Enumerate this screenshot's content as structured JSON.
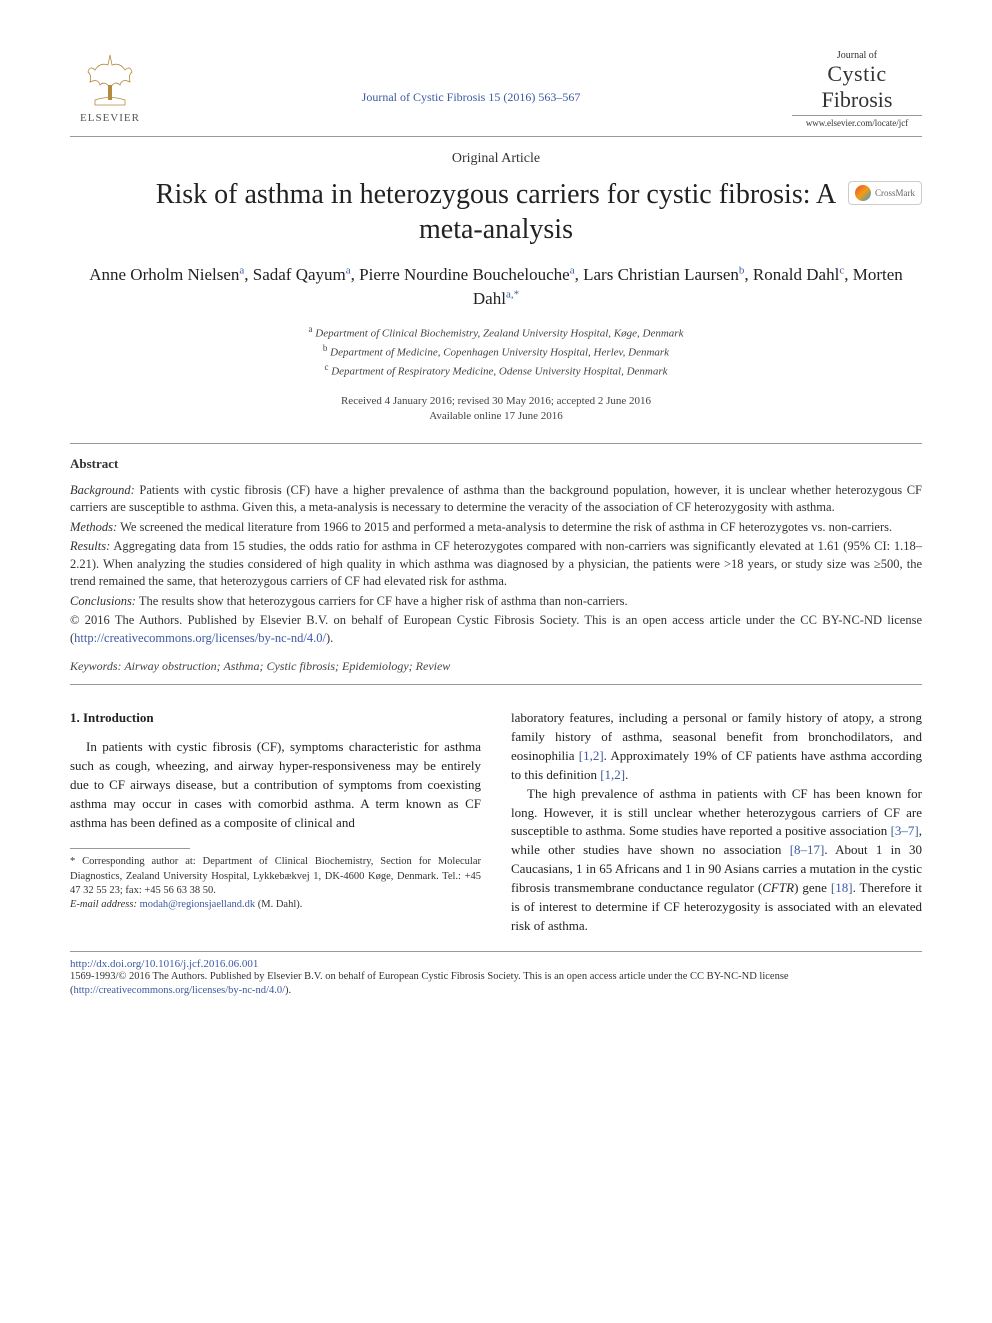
{
  "header": {
    "publisher_name": "ELSEVIER",
    "journal_reference": "Journal of Cystic Fibrosis 15 (2016) 563–567",
    "journal_logo_top": "Journal of",
    "journal_logo_line1": "Cystic",
    "journal_logo_line2": "Fibrosis",
    "journal_url": "www.elsevier.com/locate/jcf"
  },
  "article": {
    "type": "Original Article",
    "title": "Risk of asthma in heterozygous carriers for cystic fibrosis: A meta-analysis",
    "crossmark_label": "CrossMark"
  },
  "authors_line": "Anne Orholm Nielsen<sup>a</sup>, Sadaf Qayum<sup>a</sup>, Pierre Nourdine Bouchelouche<sup>a</sup>, Lars Christian Laursen<sup>b</sup>, Ronald Dahl<sup>c</sup>, Morten Dahl<sup>a,*</sup>",
  "affiliations": [
    {
      "sup": "a",
      "text": "Department of Clinical Biochemistry, Zealand University Hospital, Køge, Denmark"
    },
    {
      "sup": "b",
      "text": "Department of Medicine, Copenhagen University Hospital, Herlev, Denmark"
    },
    {
      "sup": "c",
      "text": "Department of Respiratory Medicine, Odense University Hospital, Denmark"
    }
  ],
  "dates": {
    "line1": "Received 4 January 2016; revised 30 May 2016; accepted 2 June 2016",
    "line2": "Available online 17 June 2016"
  },
  "abstract": {
    "heading": "Abstract",
    "background_label": "Background:",
    "background_text": " Patients with cystic fibrosis (CF) have a higher prevalence of asthma than the background population, however, it is unclear whether heterozygous CF carriers are susceptible to asthma. Given this, a meta-analysis is necessary to determine the veracity of the association of CF heterozygosity with asthma.",
    "methods_label": "Methods:",
    "methods_text": " We screened the medical literature from 1966 to 2015 and performed a meta-analysis to determine the risk of asthma in CF heterozygotes vs. non-carriers.",
    "results_label": "Results:",
    "results_text": " Aggregating data from 15 studies, the odds ratio for asthma in CF heterozygotes compared with non-carriers was significantly elevated at 1.61 (95% CI: 1.18–2.21). When analyzing the studies considered of high quality in which asthma was diagnosed by a physician, the patients were >18 years, or study size was ≥500, the trend remained the same, that heterozygous carriers of CF had elevated risk for asthma.",
    "conclusions_label": "Conclusions:",
    "conclusions_text": " The results show that heterozygous carriers for CF have a higher risk of asthma than non-carriers.",
    "license_text": "© 2016 The Authors. Published by Elsevier B.V. on behalf of European Cystic Fibrosis Society. This is an open access article under the CC BY-NC-ND license (",
    "license_url": "http://creativecommons.org/licenses/by-nc-nd/4.0/",
    "license_close": ")."
  },
  "keywords": {
    "label": "Keywords:",
    "text": " Airway obstruction; Asthma; Cystic fibrosis; Epidemiology; Review"
  },
  "body": {
    "section1_heading": "1. Introduction",
    "col1_p1": "In patients with cystic fibrosis (CF), symptoms characteristic for asthma such as cough, wheezing, and airway hyper-responsiveness may be entirely due to CF airways disease, but a contribution of symptoms from coexisting asthma may occur in cases with comorbid asthma. A term known as CF asthma has been defined as a composite of clinical and",
    "col2_p1_a": "laboratory features, including a personal or family history of atopy, a strong family history of asthma, seasonal benefit from bronchodilators, and eosinophilia ",
    "col2_p1_ref1": "[1,2]",
    "col2_p1_b": ". Approximately 19% of CF patients have asthma according to this definition ",
    "col2_p1_ref2": "[1,2]",
    "col2_p1_c": ".",
    "col2_p2_a": "The high prevalence of asthma in patients with CF has been known for long. However, it is still unclear whether heterozygous carriers of CF are susceptible to asthma. Some studies have reported a positive association ",
    "col2_p2_ref1": "[3–7]",
    "col2_p2_b": ", while other studies have shown no association ",
    "col2_p2_ref2": "[8–17]",
    "col2_p2_c": ". About 1 in 30 Caucasians, 1 in 65 Africans and 1 in 90 Asians carries a mutation in the cystic fibrosis transmembrane conductance regulator (",
    "col2_p2_gene": "CFTR",
    "col2_p2_d": ") gene ",
    "col2_p2_ref3": "[18]",
    "col2_p2_e": ". Therefore it is of interest to determine if CF heterozygosity is associated with an elevated risk of asthma."
  },
  "footnotes": {
    "corr_label": "* Corresponding author at: ",
    "corr_text": "Department of Clinical Biochemistry, Section for Molecular Diagnostics, Zealand University Hospital, Lykkebækvej 1, DK-4600 Køge, Denmark. Tel.: +45 47 32 55 23; fax: +45 56 63 38 50.",
    "email_label": "E-mail address:",
    "email": "modah@regionsjaelland.dk",
    "email_author": " (M. Dahl)."
  },
  "bottom": {
    "doi": "http://dx.doi.org/10.1016/j.jcf.2016.06.001",
    "license_line1": "1569-1993/© 2016 The Authors. Published by Elsevier B.V. on behalf of European Cystic Fibrosis Society. This is an open access article under the CC BY-NC-ND license (",
    "license_url": "http://creativecommons.org/licenses/by-nc-nd/4.0/",
    "license_close": ")."
  },
  "colors": {
    "link": "#3b5aa3",
    "text": "#333333",
    "rule": "#999999"
  },
  "typography": {
    "title_fontsize_pt": 21,
    "authors_fontsize_pt": 13,
    "body_fontsize_pt": 10,
    "abstract_fontsize_pt": 9.5,
    "font_family": "Times New Roman, serif"
  }
}
